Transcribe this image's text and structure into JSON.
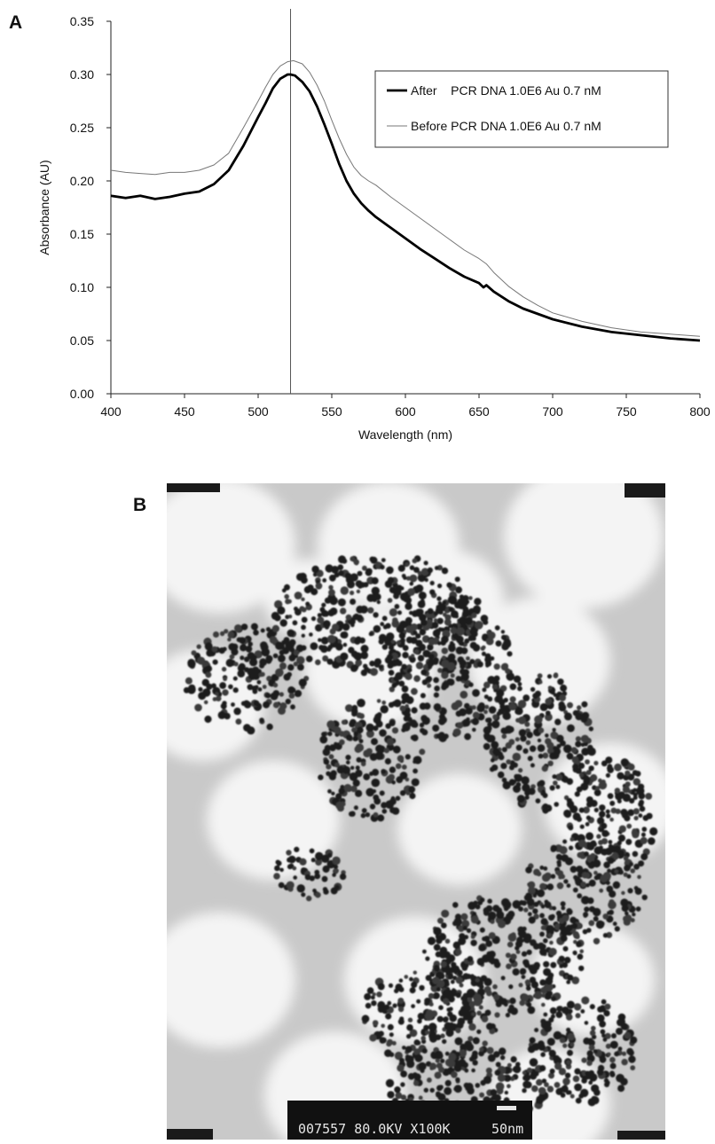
{
  "panel_labels": {
    "a": "A",
    "b": "B"
  },
  "chart_data": {
    "type": "line",
    "title": "",
    "xlabel": "Wavelength (nm)",
    "ylabel": "Absorbance (AU)",
    "xlim": [
      400,
      800
    ],
    "ylim": [
      0,
      0.35
    ],
    "xticks": [
      "400",
      "450",
      "500",
      "550",
      "600",
      "650",
      "700",
      "750",
      "800"
    ],
    "yticks": [
      "0.00",
      "0.05",
      "0.10",
      "0.15",
      "0.20",
      "0.25",
      "0.30",
      "0.35"
    ],
    "grid": false,
    "legend_position": "top-right",
    "reference_line_x": 522,
    "series": [
      {
        "name": "After    PCR DNA 1.0E6 Au 0.7 nM",
        "color": "#000000",
        "style": "thick",
        "x": [
          400,
          410,
          420,
          430,
          440,
          450,
          460,
          470,
          480,
          490,
          500,
          505,
          510,
          515,
          520,
          522,
          525,
          530,
          535,
          540,
          545,
          550,
          555,
          560,
          565,
          570,
          575,
          580,
          590,
          600,
          610,
          620,
          630,
          640,
          650,
          653,
          655,
          660,
          670,
          680,
          690,
          700,
          720,
          740,
          760,
          780,
          800
        ],
        "y": [
          0.186,
          0.184,
          0.186,
          0.183,
          0.185,
          0.188,
          0.19,
          0.197,
          0.21,
          0.233,
          0.26,
          0.273,
          0.287,
          0.296,
          0.3,
          0.3,
          0.299,
          0.293,
          0.284,
          0.27,
          0.253,
          0.235,
          0.216,
          0.2,
          0.188,
          0.179,
          0.172,
          0.166,
          0.156,
          0.146,
          0.136,
          0.127,
          0.118,
          0.11,
          0.104,
          0.1,
          0.102,
          0.096,
          0.087,
          0.08,
          0.075,
          0.07,
          0.063,
          0.058,
          0.055,
          0.052,
          0.05
        ]
      },
      {
        "name": "Before PCR DNA 1.0E6 Au 0.7 nM",
        "color": "#777777",
        "style": "thin",
        "x": [
          400,
          410,
          420,
          430,
          440,
          450,
          460,
          470,
          480,
          490,
          500,
          505,
          510,
          515,
          520,
          524,
          530,
          535,
          540,
          545,
          550,
          555,
          560,
          565,
          570,
          575,
          580,
          590,
          600,
          610,
          620,
          630,
          640,
          650,
          655,
          660,
          670,
          680,
          690,
          700,
          720,
          740,
          760,
          780,
          800
        ],
        "y": [
          0.21,
          0.208,
          0.207,
          0.206,
          0.208,
          0.208,
          0.21,
          0.215,
          0.226,
          0.25,
          0.275,
          0.288,
          0.3,
          0.308,
          0.312,
          0.313,
          0.31,
          0.302,
          0.29,
          0.275,
          0.257,
          0.24,
          0.225,
          0.213,
          0.205,
          0.2,
          0.196,
          0.185,
          0.175,
          0.165,
          0.155,
          0.145,
          0.135,
          0.127,
          0.122,
          0.114,
          0.101,
          0.091,
          0.083,
          0.076,
          0.068,
          0.062,
          0.058,
          0.056,
          0.054
        ]
      }
    ]
  },
  "tem_image": {
    "scale_bar_text": "007557  80.0KV  X100K",
    "scale_length_text": "50nm"
  }
}
